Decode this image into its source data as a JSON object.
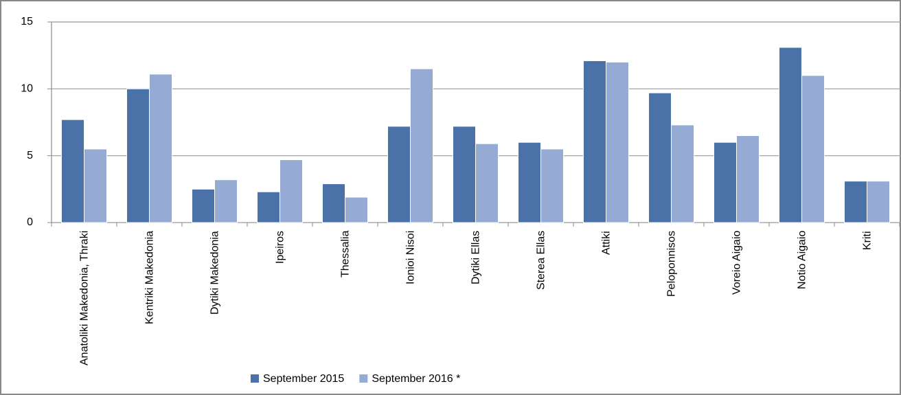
{
  "chart_data": {
    "type": "bar",
    "categories": [
      "Anatoliki Makedonia,  Thraki",
      "Kentriki Makedonia",
      "Dytiki Makedonia",
      "Ipeiros",
      "Thessalia",
      "Ionioi Nisoi",
      "Dytiki Ellas",
      "Sterea Ellas",
      "Attiki",
      "Peloponnisos",
      "Voreio Aigaio",
      "Notio Aigaio",
      "Kriti"
    ],
    "series": [
      {
        "name": "September 2015",
        "color": "#4a72a8",
        "values": [
          7.7,
          10.0,
          2.5,
          2.3,
          2.9,
          7.2,
          7.2,
          6.0,
          12.1,
          9.7,
          6.0,
          13.1,
          3.1
        ]
      },
      {
        "name": "September 2016 *",
        "color": "#95abd3",
        "values": [
          5.5,
          11.1,
          3.2,
          4.7,
          1.9,
          11.5,
          5.9,
          5.5,
          12.0,
          7.3,
          6.5,
          11.0,
          3.1
        ]
      }
    ],
    "ylim": [
      0,
      15
    ],
    "yticks": [
      0,
      5,
      10,
      15
    ],
    "grid": true,
    "legend": "bottom"
  }
}
